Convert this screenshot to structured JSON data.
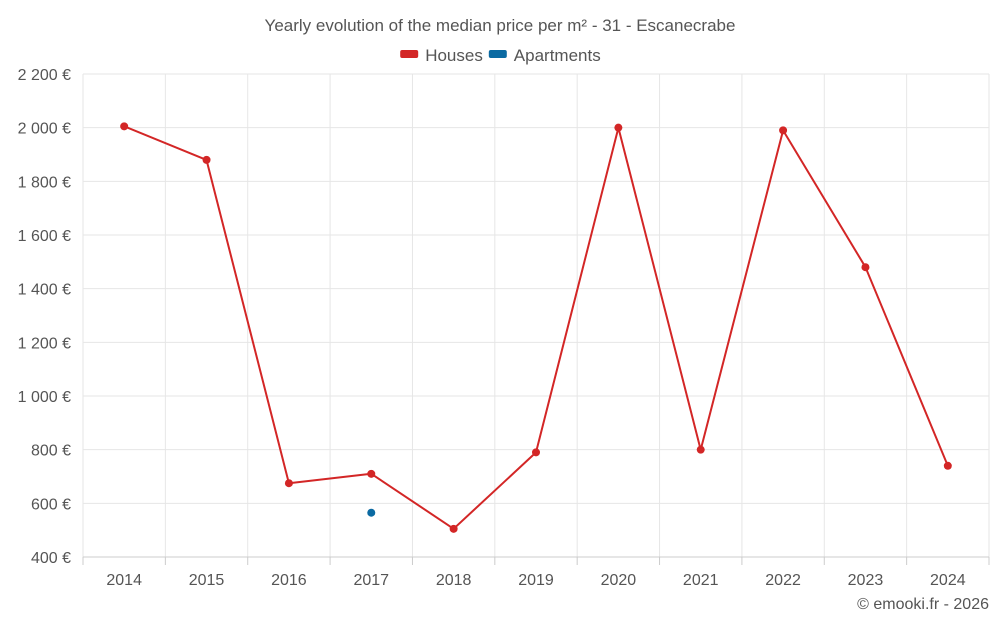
{
  "chart_data": {
    "type": "line",
    "title": "Yearly evolution of the median price per m² - 31 - Escanecrabe",
    "xlabel": "",
    "ylabel": "",
    "categories": [
      "2014",
      "2015",
      "2016",
      "2017",
      "2018",
      "2019",
      "2020",
      "2021",
      "2022",
      "2023",
      "2024"
    ],
    "y_ticks": [
      400,
      600,
      800,
      1000,
      1200,
      1400,
      1600,
      1800,
      2000,
      2200
    ],
    "y_tick_labels": [
      "400 €",
      "600 €",
      "800 €",
      "1 000 €",
      "1 200 €",
      "1 400 €",
      "1 600 €",
      "1 800 €",
      "2 000 €",
      "2 200 €"
    ],
    "ylim": [
      400,
      2200
    ],
    "grid": true,
    "legend_position": "top-center",
    "series": [
      {
        "name": "Houses",
        "color": "#d32626",
        "values": [
          2005,
          1880,
          675,
          710,
          505,
          790,
          2000,
          800,
          1990,
          1480,
          740
        ]
      },
      {
        "name": "Apartments",
        "color": "#0b6aa2",
        "values": [
          null,
          null,
          null,
          565,
          null,
          null,
          null,
          null,
          null,
          null,
          null
        ]
      }
    ]
  },
  "footer": {
    "credit": "© emooki.fr - 2026"
  }
}
